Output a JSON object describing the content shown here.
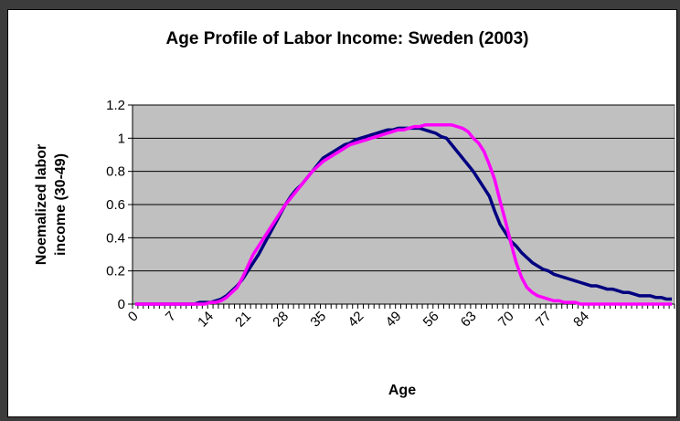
{
  "chart_data": {
    "type": "line",
    "title": "Age Profile of Labor Income: Sweden (2003)",
    "xlabel": "Age",
    "ylabel": [
      "Noemalized labor",
      "income (30-49)"
    ],
    "categories": [
      "0",
      null,
      null,
      null,
      null,
      null,
      null,
      "7",
      null,
      null,
      null,
      null,
      null,
      null,
      "14",
      null,
      null,
      null,
      null,
      null,
      null,
      "21",
      null,
      null,
      null,
      null,
      null,
      null,
      "28",
      null,
      null,
      null,
      null,
      null,
      null,
      "35",
      null,
      null,
      null,
      null,
      null,
      null,
      "42",
      null,
      null,
      null,
      null,
      null,
      null,
      "49",
      null,
      null,
      null,
      null,
      null,
      null,
      "56",
      null,
      null,
      null,
      null,
      null,
      null,
      "63",
      null,
      null,
      null,
      null,
      null,
      null,
      "70",
      null,
      null,
      null,
      null,
      null,
      null,
      "77",
      null,
      null,
      null,
      null,
      null,
      null,
      "84",
      null,
      null,
      null,
      null,
      null,
      null,
      null,
      null,
      null,
      null,
      null,
      null,
      null,
      null,
      null,
      null
    ],
    "series": [
      {
        "color": "#000080",
        "values": [
          0,
          0,
          0,
          0,
          0,
          0,
          0,
          0,
          0,
          0,
          0,
          0,
          0.01,
          0.01,
          0.01,
          0.02,
          0.03,
          0.05,
          0.08,
          0.11,
          0.15,
          0.2,
          0.25,
          0.3,
          0.36,
          0.42,
          0.48,
          0.54,
          0.6,
          0.65,
          0.69,
          0.72,
          0.76,
          0.8,
          0.84,
          0.88,
          0.9,
          0.92,
          0.94,
          0.96,
          0.97,
          0.99,
          1.0,
          1.01,
          1.02,
          1.03,
          1.04,
          1.05,
          1.05,
          1.06,
          1.06,
          1.06,
          1.06,
          1.06,
          1.05,
          1.04,
          1.03,
          1.01,
          1.0,
          0.96,
          0.92,
          0.88,
          0.84,
          0.8,
          0.75,
          0.7,
          0.65,
          0.56,
          0.48,
          0.43,
          0.38,
          0.35,
          0.31,
          0.28,
          0.25,
          0.23,
          0.21,
          0.2,
          0.18,
          0.17,
          0.16,
          0.15,
          0.14,
          0.13,
          0.12,
          0.11,
          0.11,
          0.1,
          0.09,
          0.09,
          0.08,
          0.07,
          0.07,
          0.06,
          0.05,
          0.05,
          0.05,
          0.04,
          0.04,
          0.03,
          0.03
        ]
      },
      {
        "color": "#ff00ff",
        "values": [
          0,
          0,
          0,
          0,
          0,
          0,
          0,
          0,
          0,
          0,
          0,
          0,
          0,
          0,
          0.01,
          0.01,
          0.02,
          0.04,
          0.07,
          0.1,
          0.16,
          0.23,
          0.3,
          0.35,
          0.4,
          0.45,
          0.5,
          0.55,
          0.6,
          0.64,
          0.68,
          0.72,
          0.76,
          0.8,
          0.83,
          0.86,
          0.88,
          0.9,
          0.92,
          0.94,
          0.96,
          0.97,
          0.98,
          0.99,
          1.0,
          1.01,
          1.02,
          1.03,
          1.04,
          1.05,
          1.05,
          1.06,
          1.07,
          1.07,
          1.08,
          1.08,
          1.08,
          1.08,
          1.08,
          1.08,
          1.07,
          1.06,
          1.04,
          1.0,
          0.97,
          0.92,
          0.84,
          0.75,
          0.62,
          0.5,
          0.37,
          0.25,
          0.16,
          0.1,
          0.07,
          0.05,
          0.04,
          0.03,
          0.02,
          0.02,
          0.01,
          0.01,
          0.01,
          0,
          0,
          0,
          0,
          0,
          0,
          0,
          0,
          0,
          0,
          0,
          0,
          0,
          0,
          0,
          0,
          0,
          0
        ]
      }
    ],
    "ylim": [
      0,
      1.2
    ],
    "yticks": [
      0,
      0.2,
      0.4,
      0.6,
      0.8,
      1,
      1.2
    ],
    "grid": true,
    "plot_background": "#c0c0c0"
  }
}
